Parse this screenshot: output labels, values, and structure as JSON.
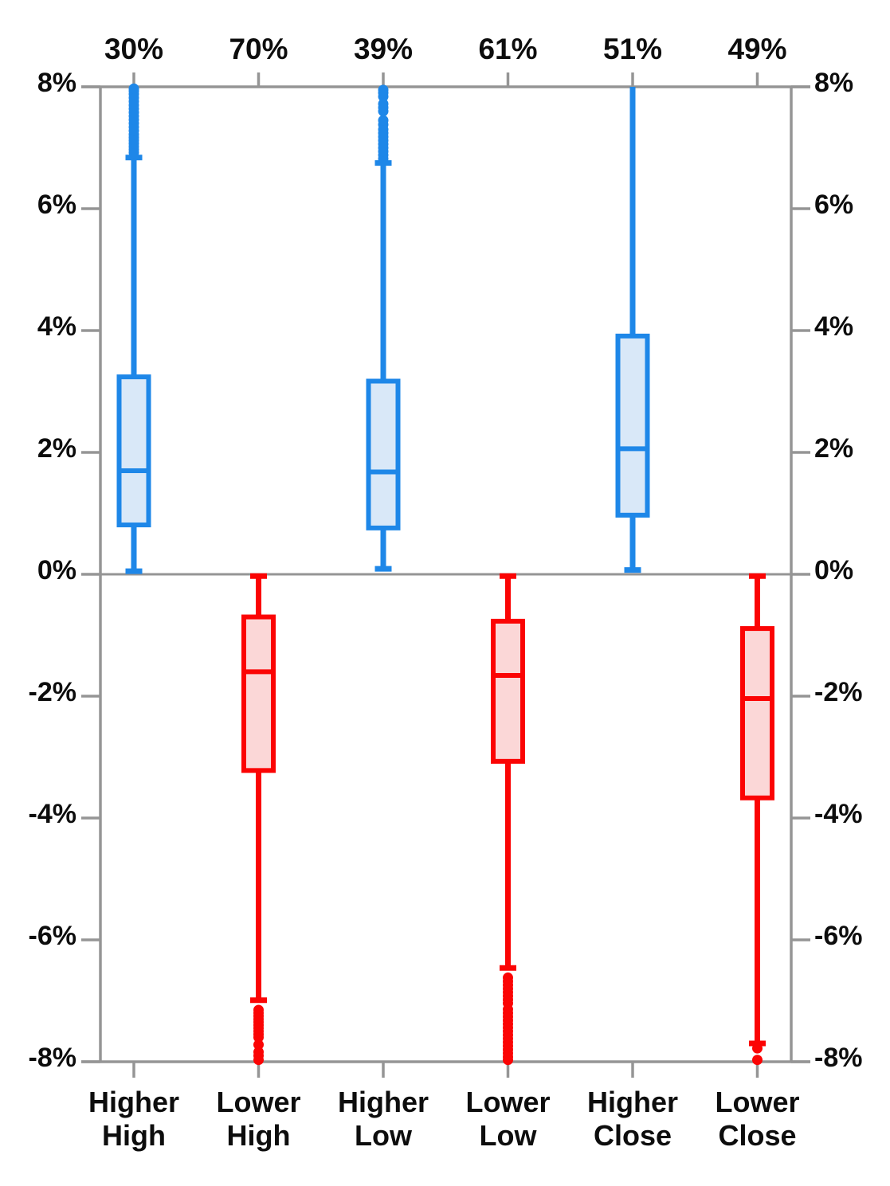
{
  "chart_data": {
    "type": "boxplot",
    "title": "",
    "orientation": "vertical",
    "y_axis": {
      "min": -8,
      "max": 8,
      "tick_step": 2,
      "tick_values": [
        8,
        6,
        4,
        2,
        0,
        -2,
        -4,
        -6,
        -8
      ],
      "tick_labels": [
        "8%",
        "6%",
        "4%",
        "2%",
        "0%",
        "-2%",
        "-4%",
        "-6%",
        "-8%"
      ],
      "left_labels": [
        "8%",
        "6%",
        "4%",
        "2%",
        "0%",
        "-2%",
        "-4%",
        "-6%",
        "-8%"
      ],
      "right_labels": [
        "8%",
        "6%",
        "4%",
        "2%",
        "0%",
        "-2%",
        "-4%",
        "-6%",
        "-8%"
      ],
      "grid": "off",
      "zero_line": true
    },
    "top_axis_labels": [
      "30%",
      "70%",
      "39%",
      "61%",
      "51%",
      "49%"
    ],
    "categories": [
      [
        "Higher",
        "High"
      ],
      [
        "Lower",
        "High"
      ],
      [
        "Higher",
        "Low"
      ],
      [
        "Lower",
        "Low"
      ],
      [
        "Higher",
        "Close"
      ],
      [
        "Lower",
        "Close"
      ]
    ],
    "series": [
      {
        "category": "Higher High",
        "top_label": "30%",
        "color": "blue",
        "whisker_low": 0.05,
        "box_low": 0.81,
        "median": 1.7,
        "box_high": 3.24,
        "whisker_high": 6.84,
        "whisker_low_cap": true,
        "whisker_high_cap": true,
        "outliers": [
          6.92,
          6.97,
          7.02,
          7.07,
          7.12,
          7.17,
          7.22,
          7.28,
          7.34,
          7.4,
          7.46,
          7.52,
          7.58,
          7.64,
          7.7,
          7.76,
          7.82,
          7.88,
          7.93,
          7.97
        ]
      },
      {
        "category": "Lower High",
        "top_label": "70%",
        "color": "red",
        "whisker_low": -6.99,
        "box_low": -3.22,
        "median": -1.6,
        "box_high": -0.7,
        "whisker_high": -0.03,
        "whisker_low_cap": true,
        "whisker_high_cap": true,
        "outliers": [
          -7.15,
          -7.2,
          -7.25,
          -7.3,
          -7.35,
          -7.4,
          -7.45,
          -7.5,
          -7.55,
          -7.6,
          -7.72,
          -7.84,
          -7.9,
          -7.97
        ]
      },
      {
        "category": "Higher Low",
        "top_label": "39%",
        "color": "blue",
        "whisker_low": 0.09,
        "box_low": 0.76,
        "median": 1.68,
        "box_high": 3.17,
        "whisker_high": 6.75,
        "whisker_low_cap": true,
        "whisker_high_cap": true,
        "outliers": [
          6.82,
          6.88,
          6.94,
          7.0,
          7.06,
          7.12,
          7.18,
          7.24,
          7.3,
          7.38,
          7.45,
          7.6,
          7.66,
          7.72,
          7.84,
          7.9,
          7.95
        ]
      },
      {
        "category": "Lower Low",
        "top_label": "61%",
        "color": "red",
        "whisker_low": -6.46,
        "box_low": -3.07,
        "median": -1.66,
        "box_high": -0.77,
        "whisker_high": -0.03,
        "whisker_low_cap": true,
        "whisker_high_cap": true,
        "outliers": [
          -6.62,
          -6.68,
          -6.74,
          -6.8,
          -6.86,
          -6.92,
          -6.98,
          -7.04,
          -7.14,
          -7.2,
          -7.26,
          -7.32,
          -7.38,
          -7.44,
          -7.5,
          -7.56,
          -7.62,
          -7.68,
          -7.74,
          -7.8,
          -7.86,
          -7.92,
          -7.97
        ]
      },
      {
        "category": "Higher Close",
        "top_label": "51%",
        "color": "blue",
        "whisker_low": 0.07,
        "box_low": 0.97,
        "median": 2.06,
        "box_high": 3.91,
        "whisker_high": 8.0,
        "whisker_low_cap": true,
        "whisker_high_cap": false,
        "outliers": []
      },
      {
        "category": "Lower Close",
        "top_label": "49%",
        "color": "red",
        "whisker_low": -7.7,
        "box_low": -3.67,
        "median": -2.04,
        "box_high": -0.89,
        "whisker_high": -0.03,
        "whisker_low_cap": true,
        "whisker_high_cap": true,
        "outliers": [
          -7.78,
          -7.97
        ]
      }
    ],
    "colors": {
      "blue_stroke": "#1e87e8",
      "blue_fill": "#d9e8f8",
      "red_stroke": "#fb0404",
      "red_fill": "#fbd7d7",
      "axis": "#959595",
      "text": "#0d0d0d"
    }
  }
}
